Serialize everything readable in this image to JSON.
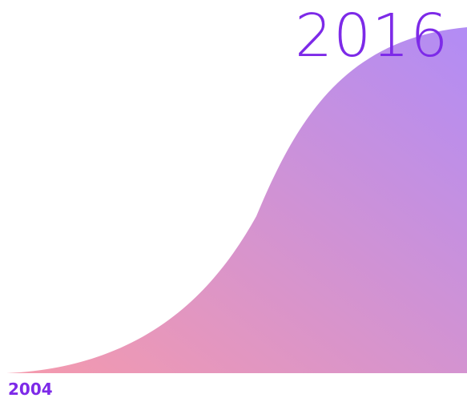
{
  "chart_data": {
    "type": "area",
    "x_start_label": "2004",
    "x_end_label": "2016",
    "colors": {
      "gradient_bottom_left": "#f59aac",
      "gradient_top_right": "#b28cf5",
      "label": "#7d2ae8"
    },
    "grid": false,
    "legend": "none"
  }
}
